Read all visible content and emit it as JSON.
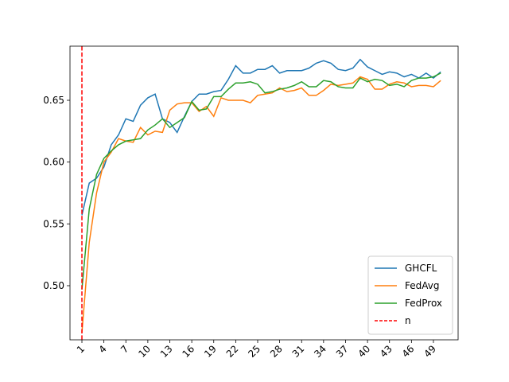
{
  "chart_data": {
    "type": "line",
    "x": [
      1,
      2,
      3,
      4,
      5,
      6,
      7,
      8,
      9,
      10,
      11,
      12,
      13,
      14,
      15,
      16,
      17,
      18,
      19,
      20,
      21,
      22,
      23,
      24,
      25,
      26,
      27,
      28,
      29,
      30,
      31,
      32,
      33,
      34,
      35,
      36,
      37,
      38,
      39,
      40,
      41,
      42,
      43,
      44,
      45,
      46,
      47,
      48,
      49,
      50
    ],
    "series": [
      {
        "name": "GHCFL",
        "color": "#1f77b4",
        "values": [
          0.557,
          0.583,
          0.587,
          0.596,
          0.614,
          0.622,
          0.635,
          0.633,
          0.646,
          0.652,
          0.655,
          0.635,
          0.632,
          0.624,
          0.637,
          0.649,
          0.655,
          0.655,
          0.657,
          0.658,
          0.667,
          0.678,
          0.672,
          0.672,
          0.675,
          0.675,
          0.678,
          0.672,
          0.674,
          0.674,
          0.674,
          0.676,
          0.68,
          0.682,
          0.68,
          0.675,
          0.674,
          0.676,
          0.683,
          0.677,
          0.674,
          0.671,
          0.673,
          0.672,
          0.669,
          0.671,
          0.668,
          0.672,
          0.668,
          0.673
        ]
      },
      {
        "name": "FedAvg",
        "color": "#ff7f0e",
        "values": [
          0.462,
          0.535,
          0.575,
          0.6,
          0.608,
          0.619,
          0.617,
          0.616,
          0.628,
          0.622,
          0.625,
          0.624,
          0.642,
          0.647,
          0.648,
          0.648,
          0.641,
          0.645,
          0.637,
          0.652,
          0.65,
          0.65,
          0.65,
          0.648,
          0.654,
          0.655,
          0.656,
          0.66,
          0.657,
          0.658,
          0.66,
          0.654,
          0.654,
          0.658,
          0.663,
          0.662,
          0.663,
          0.664,
          0.669,
          0.667,
          0.659,
          0.659,
          0.663,
          0.665,
          0.664,
          0.661,
          0.662,
          0.662,
          0.661,
          0.666
        ]
      },
      {
        "name": "FedProx",
        "color": "#2ca02c",
        "values": [
          0.497,
          0.562,
          0.59,
          0.603,
          0.609,
          0.614,
          0.617,
          0.618,
          0.619,
          0.626,
          0.63,
          0.635,
          0.628,
          0.632,
          0.636,
          0.649,
          0.642,
          0.643,
          0.653,
          0.653,
          0.659,
          0.664,
          0.664,
          0.665,
          0.663,
          0.656,
          0.657,
          0.659,
          0.66,
          0.662,
          0.665,
          0.661,
          0.661,
          0.666,
          0.665,
          0.661,
          0.66,
          0.66,
          0.668,
          0.665,
          0.667,
          0.666,
          0.662,
          0.663,
          0.661,
          0.666,
          0.668,
          0.668,
          0.669,
          0.672
        ]
      }
    ],
    "vlines": [
      {
        "name": "n",
        "x": 1,
        "color": "#ff0000"
      }
    ],
    "xlim": [
      -0.63,
      52.37
    ],
    "xticks": [
      1,
      4,
      7,
      10,
      13,
      16,
      19,
      22,
      25,
      28,
      31,
      34,
      37,
      40,
      43,
      46,
      49
    ],
    "ylim": [
      0.4562,
      0.6938
    ],
    "yticks": [
      {
        "value": 0.5,
        "label": "0.50"
      },
      0.55,
      {
        "value": 0.6,
        "label": "0.60"
      },
      0.65
    ],
    "legend": "lower right"
  }
}
